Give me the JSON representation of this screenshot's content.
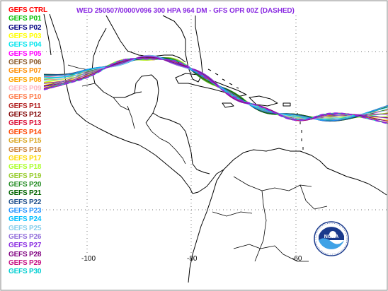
{
  "title": "WED 250507/0000V096  300 HPA 964 DM - GFS OPR 00Z (DASHED)",
  "legend": [
    {
      "label": "GEFS CTRL",
      "color": "#ff0000"
    },
    {
      "label": "GEFS P01",
      "color": "#00c000"
    },
    {
      "label": "GEFS P02",
      "color": "#000080"
    },
    {
      "label": "GEFS P03",
      "color": "#ffff00"
    },
    {
      "label": "GEFS P04",
      "color": "#00e5ee"
    },
    {
      "label": "GEFS P05",
      "color": "#ff00ff"
    },
    {
      "label": "GEFS P06",
      "color": "#8b5a2b"
    },
    {
      "label": "GEFS P07",
      "color": "#ff8c00"
    },
    {
      "label": "GEFS P08",
      "color": "#ffa500"
    },
    {
      "label": "GEFS P09",
      "color": "#ffb6c1"
    },
    {
      "label": "GEFS P10",
      "color": "#ff7f50"
    },
    {
      "label": "GEFS P11",
      "color": "#b22222"
    },
    {
      "label": "GEFS P12",
      "color": "#800000"
    },
    {
      "label": "GEFS P13",
      "color": "#dc143c"
    },
    {
      "label": "GEFS P14",
      "color": "#ff4500"
    },
    {
      "label": "GEFS P15",
      "color": "#daa520"
    },
    {
      "label": "GEFS P16",
      "color": "#cd853f"
    },
    {
      "label": "GEFS P17",
      "color": "#ffd700"
    },
    {
      "label": "GEFS P18",
      "color": "#adff2f"
    },
    {
      "label": "GEFS P19",
      "color": "#9acd32"
    },
    {
      "label": "GEFS P20",
      "color": "#228b22"
    },
    {
      "label": "GEFS P21",
      "color": "#006400"
    },
    {
      "label": "GEFS P22",
      "color": "#1e4e8c"
    },
    {
      "label": "GEFS P23",
      "color": "#1e90ff"
    },
    {
      "label": "GEFS P24",
      "color": "#00bfff"
    },
    {
      "label": "GEFS P25",
      "color": "#87ceeb"
    },
    {
      "label": "GEFS P26",
      "color": "#9370db"
    },
    {
      "label": "GEFS P27",
      "color": "#8a2be2"
    },
    {
      "label": "GEFS P28",
      "color": "#800080"
    },
    {
      "label": "GEFS P29",
      "color": "#c71585"
    },
    {
      "label": "GEFS P30",
      "color": "#00ced1"
    }
  ],
  "axis": {
    "lon_labels": [
      {
        "value": -100,
        "text": "-100"
      },
      {
        "value": -80,
        "text": "-80"
      },
      {
        "value": -60,
        "text": "-60"
      }
    ]
  },
  "logo": {
    "text": "NOAA"
  }
}
